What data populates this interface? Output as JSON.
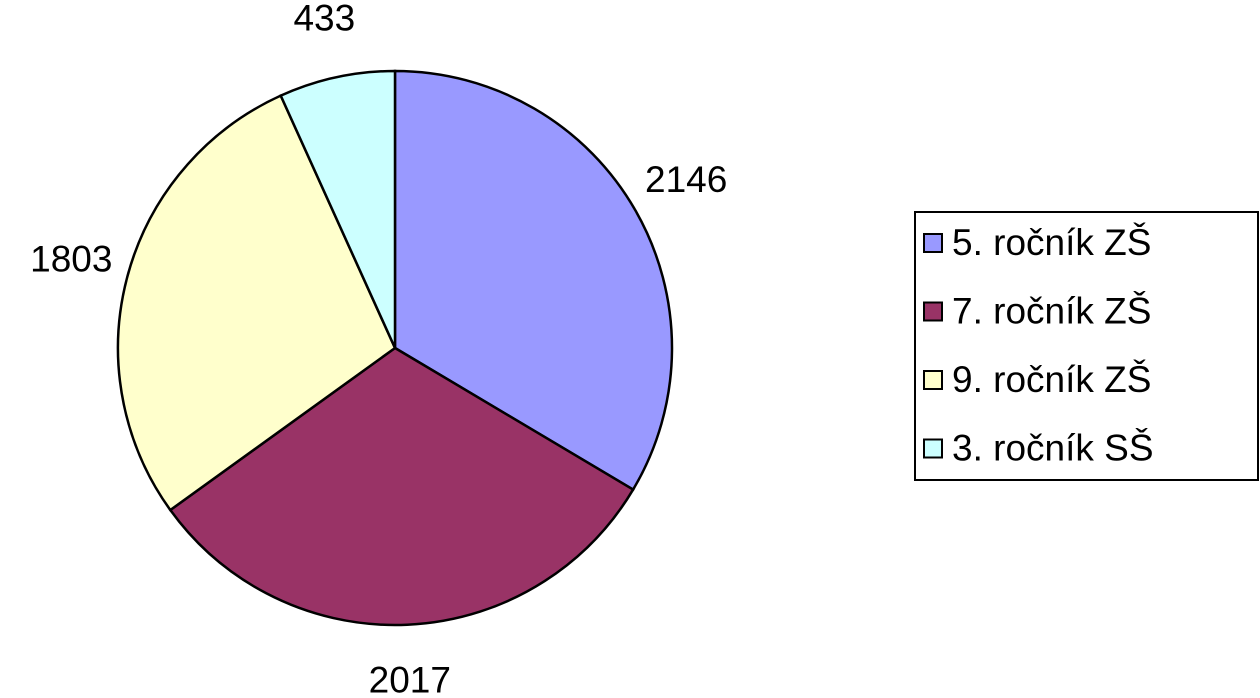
{
  "chart_data": {
    "type": "pie",
    "categories": [
      "5. ročník ZŠ",
      "7. ročník ZŠ",
      "9. ročník ZŠ",
      "3. ročník SŠ"
    ],
    "values": [
      2146,
      2017,
      1803,
      433
    ],
    "colors": [
      "#9999ff",
      "#993366",
      "#ffffcc",
      "#ccffff"
    ],
    "legend": "right"
  }
}
